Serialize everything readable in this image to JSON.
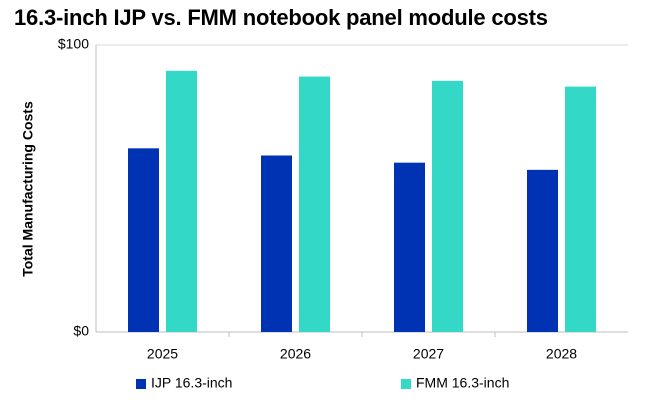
{
  "chart_data": {
    "type": "bar",
    "title": "16.3-inch IJP vs. FMM notebook panel module costs",
    "xlabel": "",
    "ylabel": "Total Manufacturing Costs",
    "ylim": [
      0,
      100
    ],
    "y_tick_labels": [
      "$0",
      "$100"
    ],
    "categories": [
      "2025",
      "2026",
      "2027",
      "2028"
    ],
    "series": [
      {
        "name": "IJP 16.3-inch",
        "color": "#0033b4",
        "values": [
          64,
          61.5,
          59,
          56.5
        ]
      },
      {
        "name": "FMM 16.3-inch",
        "color": "#33d9c6",
        "values": [
          91,
          89,
          87.5,
          85.5
        ]
      }
    ],
    "grid": "horizontal top line at $100",
    "legend_position": "bottom"
  }
}
